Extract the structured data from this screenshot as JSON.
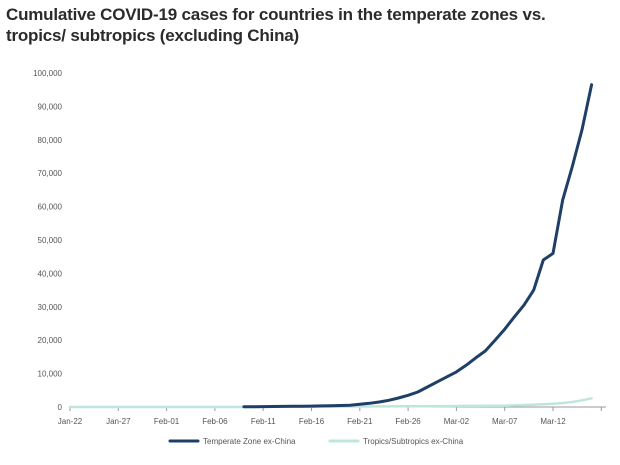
{
  "chart_data": {
    "type": "line",
    "title": "Cumulative COVID-19 cases for countries in the temperate zones vs. tropics/ subtropics (excluding China)",
    "xlabel": "",
    "ylabel": "",
    "ylim": [
      0,
      100000
    ],
    "yticks": [
      "0",
      "10,000",
      "20,000",
      "30,000",
      "40,000",
      "50,000",
      "60,000",
      "70,000",
      "80,000",
      "90,000",
      "100,000"
    ],
    "xticks": [
      "Jan-22",
      "Jan-27",
      "Feb-01",
      "Feb-06",
      "Feb-11",
      "Feb-16",
      "Feb-21",
      "Feb-26",
      "Mar-02",
      "Mar-07",
      "Mar-12"
    ],
    "grid": false,
    "legend": "bottom",
    "x": [
      "Jan-22",
      "Jan-23",
      "Jan-24",
      "Jan-25",
      "Jan-26",
      "Jan-27",
      "Jan-28",
      "Jan-29",
      "Jan-30",
      "Jan-31",
      "Feb-01",
      "Feb-02",
      "Feb-03",
      "Feb-04",
      "Feb-05",
      "Feb-06",
      "Feb-07",
      "Feb-08",
      "Feb-09",
      "Feb-10",
      "Feb-11",
      "Feb-12",
      "Feb-13",
      "Feb-14",
      "Feb-15",
      "Feb-16",
      "Feb-17",
      "Feb-18",
      "Feb-19",
      "Feb-20",
      "Feb-21",
      "Feb-22",
      "Feb-23",
      "Feb-24",
      "Feb-25",
      "Feb-26",
      "Feb-27",
      "Feb-28",
      "Feb-29",
      "Mar-01",
      "Mar-02",
      "Mar-03",
      "Mar-04",
      "Mar-05",
      "Mar-06",
      "Mar-07",
      "Mar-08",
      "Mar-09",
      "Mar-10",
      "Mar-11",
      "Mar-12",
      "Mar-13",
      "Mar-14",
      "Mar-15",
      "Mar-16"
    ],
    "series": [
      {
        "name": "Temperate Zone ex-China",
        "color": "#1f3f66",
        "values": [
          null,
          null,
          null,
          null,
          null,
          null,
          null,
          null,
          null,
          null,
          null,
          null,
          null,
          null,
          null,
          null,
          null,
          null,
          80,
          100,
          120,
          150,
          180,
          200,
          250,
          280,
          320,
          380,
          450,
          550,
          800,
          1100,
          1500,
          2000,
          2700,
          3500,
          4500,
          6000,
          7500,
          9000,
          10500,
          12500,
          14700,
          16800,
          20000,
          23300,
          27000,
          30500,
          35000,
          44000,
          46000,
          62000,
          72000,
          83000,
          96500
        ]
      },
      {
        "name": "Tropics/Subtropics ex-China",
        "color": "#bfe6de",
        "values": [
          0,
          0,
          0,
          0,
          0,
          0,
          0,
          0,
          0,
          0,
          0,
          0,
          0,
          0,
          0,
          0,
          0,
          0,
          0,
          0,
          50,
          60,
          70,
          80,
          90,
          100,
          110,
          120,
          130,
          140,
          150,
          160,
          170,
          180,
          200,
          210,
          220,
          240,
          260,
          280,
          300,
          320,
          340,
          360,
          380,
          400,
          500,
          600,
          700,
          850,
          1000,
          1200,
          1500,
          2000,
          2600
        ]
      }
    ]
  }
}
